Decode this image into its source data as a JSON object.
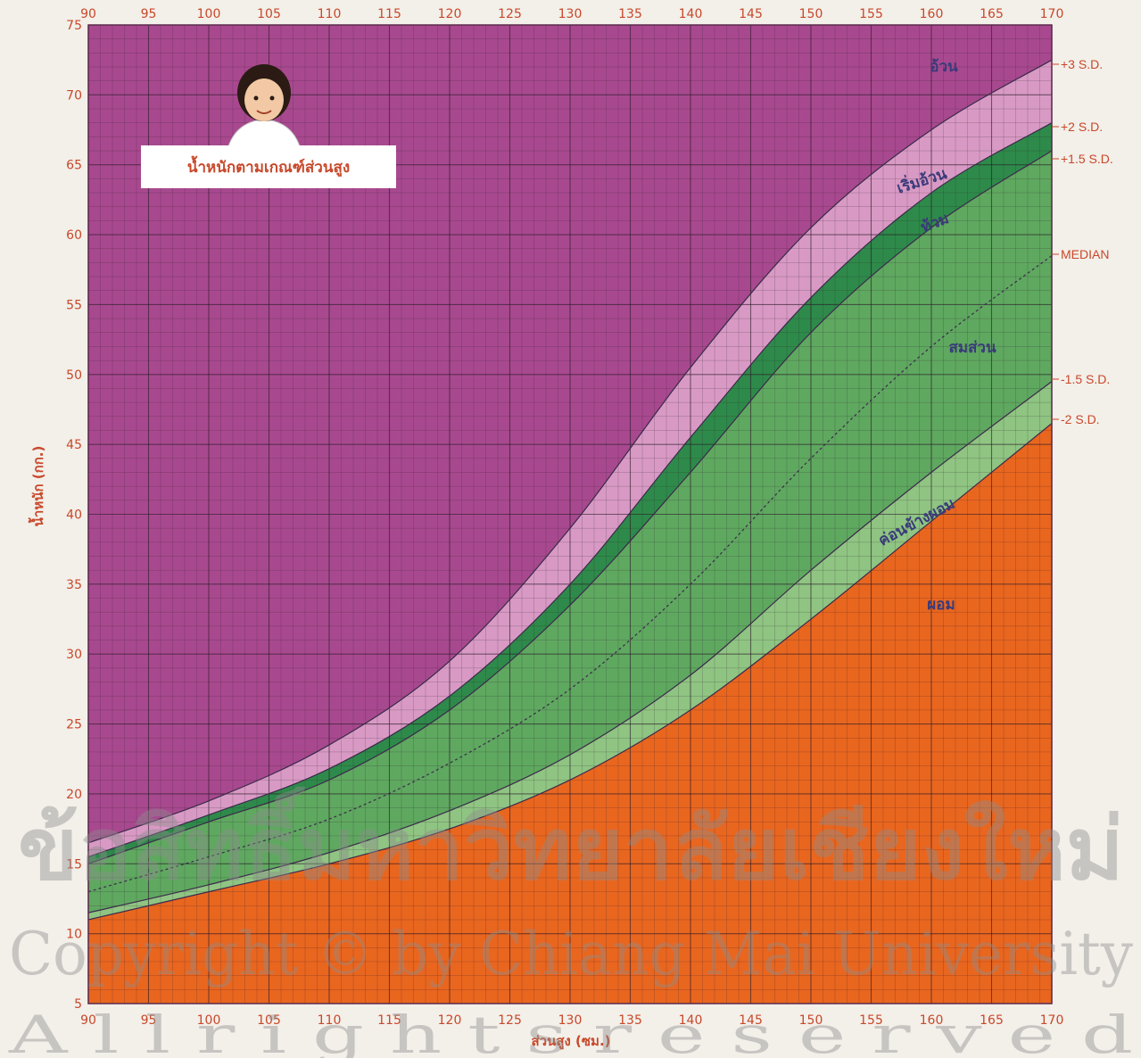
{
  "chart_data": {
    "type": "area",
    "title": "น้ำหนักตามเกณฑ์ส่วนสูง",
    "xlabel": "ส่วนสูง (ซม.)",
    "ylabel": "น้ำหนัก (กก.)",
    "xlim": [
      90,
      170
    ],
    "ylim": [
      5,
      75
    ],
    "xticks": [
      "90",
      "95",
      "100",
      "105",
      "110",
      "115",
      "120",
      "125",
      "130",
      "135",
      "140",
      "145",
      "150",
      "155",
      "160",
      "165",
      "170"
    ],
    "yticks": [
      "5",
      "10",
      "15",
      "20",
      "25",
      "30",
      "35",
      "40",
      "45",
      "50",
      "55",
      "60",
      "65",
      "70",
      "75"
    ],
    "grid": true,
    "x": [
      90,
      100,
      110,
      120,
      130,
      140,
      150,
      160,
      170
    ],
    "series": [
      {
        "name": "+3 S.D.",
        "values": [
          16.5,
          19.5,
          23.5,
          29.5,
          39.0,
          50.5,
          60.5,
          67.5,
          72.5
        ]
      },
      {
        "name": "+2 S.D.",
        "values": [
          15.5,
          18.5,
          21.8,
          27.0,
          35.0,
          45.5,
          55.5,
          63.0,
          68.0
        ]
      },
      {
        "name": "+1.5 S.D.",
        "values": [
          15.0,
          18.0,
          21.0,
          26.0,
          33.5,
          43.0,
          53.0,
          60.5,
          66.0
        ]
      },
      {
        "name": "MEDIAN",
        "values": [
          13.0,
          15.5,
          18.2,
          22.2,
          27.5,
          35.0,
          44.0,
          52.0,
          58.5
        ]
      },
      {
        "name": "-1.5 S.D.",
        "values": [
          11.5,
          13.5,
          15.8,
          18.8,
          22.8,
          28.5,
          36.0,
          43.0,
          49.5
        ]
      },
      {
        "name": "-2 S.D.",
        "values": [
          11.0,
          13.0,
          15.0,
          17.5,
          21.0,
          26.0,
          32.5,
          39.5,
          46.5
        ]
      }
    ],
    "zones": [
      {
        "label": "อ้วน",
        "color": "#a8498f"
      },
      {
        "label": "เริ่มอ้วน",
        "color": "#d89ac4"
      },
      {
        "label": "ท้วม",
        "color": "#2e8a4a"
      },
      {
        "label": "สมส่วน",
        "color": "#5fa860"
      },
      {
        "label": "ค่อนข้างผอม",
        "color": "#8fc482"
      },
      {
        "label": "ผอม",
        "color": "#e9661f"
      }
    ],
    "zone_label_color": "#3a3a7a",
    "grid_color": "#2a1a28"
  },
  "watermark": {
    "line1": "ข้อสิทธิ์มหาวิทยาลัยเชียงใหม่",
    "line2": "Copyright © by Chiang Mai University",
    "line3": "A l l   r i g h t s   r e s e r v e d"
  }
}
